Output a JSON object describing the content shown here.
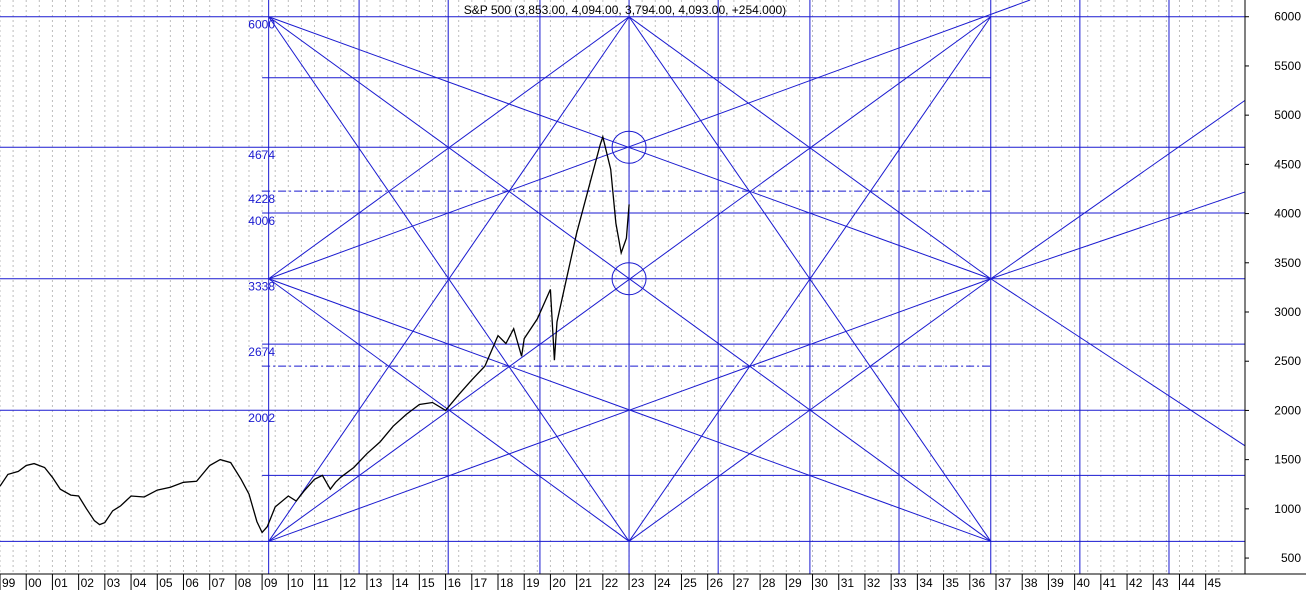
{
  "chart_data": {
    "type": "line",
    "title": "S&P 500 (3,853.00, 4,094.00, 3,794.00, 4,093.00, +254.000)",
    "x_tick_labels": [
      "99",
      "00",
      "01",
      "02",
      "03",
      "04",
      "05",
      "06",
      "07",
      "08",
      "09",
      "10",
      "11",
      "12",
      "13",
      "14",
      "15",
      "16",
      "17",
      "18",
      "19",
      "20",
      "21",
      "22",
      "23",
      "24",
      "25",
      "26",
      "27",
      "28",
      "29",
      "30",
      "31",
      "32",
      "33",
      "34",
      "35",
      "36",
      "37",
      "38",
      "39",
      "40",
      "41",
      "42",
      "43",
      "44",
      "45"
    ],
    "y_ticks": [
      500,
      1000,
      1500,
      2000,
      2500,
      3000,
      3500,
      4000,
      4500,
      5000,
      5500,
      6000
    ],
    "ylim": [
      338,
      6170
    ],
    "xlim": [
      1999.0,
      2046.5
    ],
    "level_labels": [
      {
        "text": "6000",
        "value": 6000
      },
      {
        "text": "4674",
        "value": 4674
      },
      {
        "text": "4228",
        "value": 4228
      },
      {
        "text": "4006",
        "value": 4006
      },
      {
        "text": "3338",
        "value": 3338
      },
      {
        "text": "2674",
        "value": 2674
      },
      {
        "text": "2002",
        "value": 2002
      }
    ],
    "horizontal_levels": [
      {
        "value": 6000,
        "x_from": 1999.0,
        "x_to": 2046.5,
        "style": "solid"
      },
      {
        "value": 5380,
        "x_from": 2009.0,
        "x_to": 2036.8,
        "style": "solid"
      },
      {
        "value": 4674,
        "x_from": 1999.0,
        "x_to": 2046.5,
        "style": "solid"
      },
      {
        "value": 4228,
        "x_from": 2009.0,
        "x_to": 2036.8,
        "style": "dashdot"
      },
      {
        "value": 4006,
        "x_from": 2009.0,
        "x_to": 2046.5,
        "style": "solid"
      },
      {
        "value": 3338,
        "x_from": 1999.0,
        "x_to": 2046.5,
        "style": "solid"
      },
      {
        "value": 2674,
        "x_from": 2009.0,
        "x_to": 2046.5,
        "style": "solid"
      },
      {
        "value": 2450,
        "x_from": 2009.0,
        "x_to": 2036.8,
        "style": "dashdot"
      },
      {
        "value": 2002,
        "x_from": 1999.0,
        "x_to": 2046.5,
        "style": "solid"
      },
      {
        "value": 1340,
        "x_from": 2009.0,
        "x_to": 2046.5,
        "style": "solid"
      },
      {
        "value": 670,
        "x_from": 1999.0,
        "x_to": 2046.5,
        "style": "solid"
      }
    ],
    "vertical_levels": [
      2009.25,
      2012.7,
      2016.1,
      2019.6,
      2023.0,
      2026.4,
      2029.9,
      2033.3,
      2036.8,
      2040.2,
      2043.6
    ],
    "gann_lines": [
      [
        2009.25,
        6000,
        2036.8,
        670
      ],
      [
        2009.25,
        670,
        2036.8,
        6000
      ],
      [
        2009.25,
        6000,
        2023.0,
        670
      ],
      [
        2023.0,
        670,
        2036.8,
        6000
      ],
      [
        2009.25,
        670,
        2023.0,
        6000
      ],
      [
        2023.0,
        6000,
        2036.8,
        670
      ],
      [
        2009.25,
        6000,
        2036.8,
        3338
      ],
      [
        2009.25,
        3338,
        2036.8,
        670
      ],
      [
        2009.25,
        670,
        2036.8,
        3338
      ],
      [
        2009.25,
        3338,
        2038.3,
        6170
      ],
      [
        2009.25,
        3338,
        2023.0,
        6000
      ],
      [
        2023.0,
        6000,
        2036.8,
        3338
      ],
      [
        2009.25,
        3338,
        2023.0,
        670
      ],
      [
        2023.0,
        670,
        2036.8,
        3338
      ],
      [
        2036.8,
        3338,
        2046.5,
        5150
      ],
      [
        2036.8,
        3338,
        2046.5,
        1640
      ],
      [
        2036.8,
        3338,
        2046.5,
        4220
      ]
    ],
    "circles": [
      {
        "x": 2023.0,
        "y": 4674
      },
      {
        "x": 2023.0,
        "y": 3338
      }
    ],
    "series": [
      {
        "x": [
          1999.0,
          1999.3,
          1999.7,
          2000.0,
          2000.3,
          2000.7,
          2001.0,
          2001.3,
          2001.7,
          2002.0,
          2002.3,
          2002.6,
          2002.8,
          2003.0,
          2003.3,
          2003.6,
          2004.0,
          2004.5,
          2005.0,
          2005.5,
          2006.0,
          2006.5,
          2007.0,
          2007.4,
          2007.8,
          2008.2,
          2008.5,
          2008.8,
          2009.0,
          2009.2,
          2009.5,
          2010.0,
          2010.3,
          2010.6,
          2011.0,
          2011.3,
          2011.6,
          2011.8,
          2012.0,
          2012.5,
          2013.0,
          2013.5,
          2014.0,
          2014.5,
          2015.0,
          2015.5,
          2016.0,
          2016.5,
          2017.0,
          2017.5,
          2018.0,
          2018.3,
          2018.6,
          2018.9,
          2019.0,
          2019.5,
          2020.0,
          2020.15,
          2020.25,
          2020.5,
          2021.0,
          2021.5,
          2021.9,
          2022.0,
          2022.3,
          2022.5,
          2022.7,
          2022.9,
          2023.0
        ],
        "y": [
          1230,
          1350,
          1380,
          1440,
          1460,
          1420,
          1320,
          1200,
          1140,
          1130,
          1000,
          880,
          840,
          860,
          980,
          1030,
          1130,
          1120,
          1190,
          1220,
          1270,
          1280,
          1440,
          1500,
          1470,
          1300,
          1150,
          870,
          760,
          820,
          1020,
          1130,
          1080,
          1180,
          1300,
          1340,
          1200,
          1270,
          1320,
          1420,
          1560,
          1680,
          1840,
          1960,
          2060,
          2080,
          2000,
          2160,
          2310,
          2450,
          2760,
          2680,
          2830,
          2550,
          2730,
          2930,
          3230,
          2510,
          2900,
          3200,
          3800,
          4300,
          4700,
          4780,
          4450,
          3900,
          3600,
          3750,
          4093
        ]
      }
    ]
  }
}
